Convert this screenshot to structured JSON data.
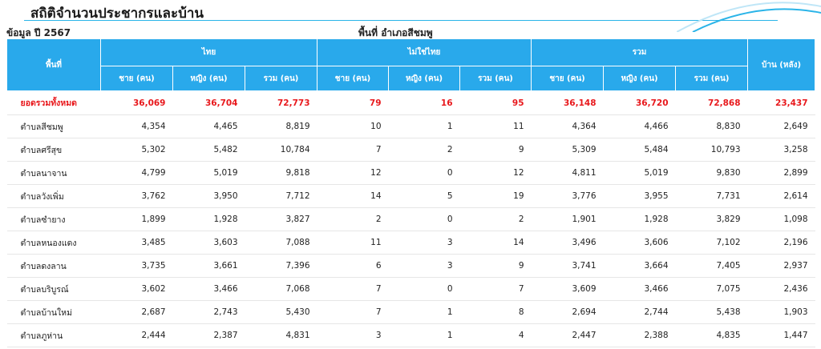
{
  "page": {
    "title": "สถิติจำนวนประชากรและบ้าน",
    "year_label": "ข้อมูล ปี 2567",
    "area_label": "พื้นที่ อำเภอสีชมพู"
  },
  "table": {
    "area_header": "พื้นที่",
    "group_headers": [
      "ไทย",
      "ไม่ใช่ไทย",
      "รวม"
    ],
    "house_header": "บ้าน (หลัง)",
    "sub_headers": [
      "ชาย (คน)",
      "หญิง (คน)",
      "รวม (คน)",
      "ชาย (คน)",
      "หญิง (คน)",
      "รวม (คน)",
      "ชาย (คน)",
      "หญิง (คน)",
      "รวม (คน)"
    ],
    "total_row": [
      "ยอดรวมทั้งหมด",
      "36,069",
      "36,704",
      "72,773",
      "79",
      "16",
      "95",
      "36,148",
      "36,720",
      "72,868",
      "23,437"
    ],
    "rows": [
      [
        "ตำบลสีชมพู",
        "4,354",
        "4,465",
        "8,819",
        "10",
        "1",
        "11",
        "4,364",
        "4,466",
        "8,830",
        "2,649"
      ],
      [
        "ตำบลศรีสุข",
        "5,302",
        "5,482",
        "10,784",
        "7",
        "2",
        "9",
        "5,309",
        "5,484",
        "10,793",
        "3,258"
      ],
      [
        "ตำบลนาจาน",
        "4,799",
        "5,019",
        "9,818",
        "12",
        "0",
        "12",
        "4,811",
        "5,019",
        "9,830",
        "2,899"
      ],
      [
        "ตำบลวังเพิ่ม",
        "3,762",
        "3,950",
        "7,712",
        "14",
        "5",
        "19",
        "3,776",
        "3,955",
        "7,731",
        "2,614"
      ],
      [
        "ตำบลซำยาง",
        "1,899",
        "1,928",
        "3,827",
        "2",
        "0",
        "2",
        "1,901",
        "1,928",
        "3,829",
        "1,098"
      ],
      [
        "ตำบลหนองแดง",
        "3,485",
        "3,603",
        "7,088",
        "11",
        "3",
        "14",
        "3,496",
        "3,606",
        "7,102",
        "2,196"
      ],
      [
        "ตำบลดงลาน",
        "3,735",
        "3,661",
        "7,396",
        "6",
        "3",
        "9",
        "3,741",
        "3,664",
        "7,405",
        "2,937"
      ],
      [
        "ตำบลบริบูรณ์",
        "3,602",
        "3,466",
        "7,068",
        "7",
        "0",
        "7",
        "3,609",
        "3,466",
        "7,075",
        "2,436"
      ],
      [
        "ตำบลบ้านใหม่",
        "2,687",
        "2,743",
        "5,430",
        "7",
        "1",
        "8",
        "2,694",
        "2,744",
        "5,438",
        "1,903"
      ],
      [
        "ตำบลภูห่าน",
        "2,444",
        "2,387",
        "4,831",
        "3",
        "1",
        "4",
        "2,447",
        "2,388",
        "4,835",
        "1,447"
      ]
    ]
  },
  "colors": {
    "header_bg": "#29a9eb",
    "total_text": "#e8181c",
    "accent_line": "#2ab4e8"
  }
}
